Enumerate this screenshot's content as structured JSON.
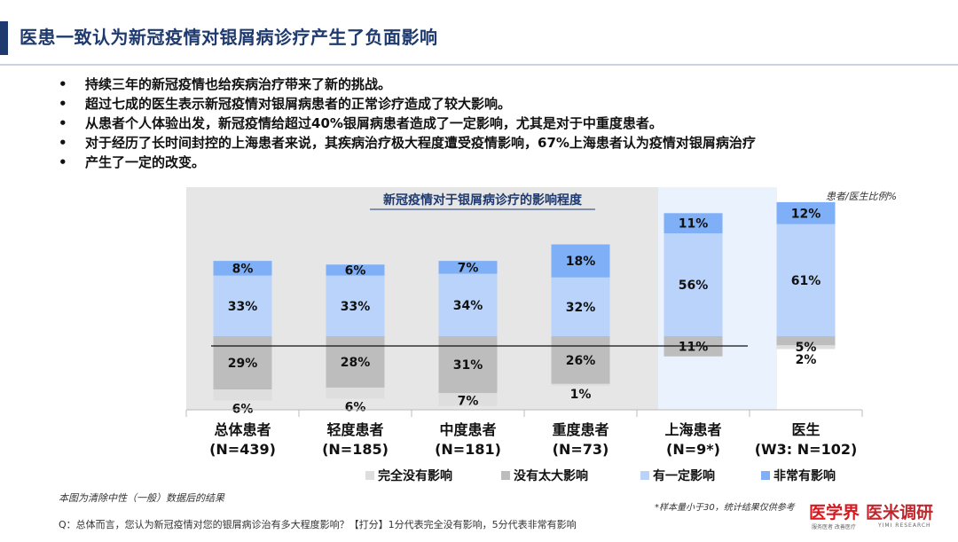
{
  "title": "医患一致认为新冠疫情对银屑病诊疗产生了负面影响",
  "bullets": [
    "持续三年的新冠疫情也给疾病治疗带来了新的挑战。",
    "超过七成的医生表示新冠疫情对银屑病患者的正常诊疗造成了较大影响。",
    "从患者个人体验出发，新冠疫情给超过40%银屑病患者造成了一定影响，尤其是对于中重度患者。",
    "对于经历了长时间封控的上海患者来说，其疾病治疗极大程度遭受疫情影响，67%上海患者认为疫情对银屑病治疗",
    "产生了一定的改变。"
  ],
  "chart_data": {
    "type": "bar",
    "title": "新冠疫情对于银屑病诊疗的影响程度",
    "unit_note": "患者/医生比例%",
    "categories": [
      [
        "总体患者",
        "(N=439)"
      ],
      [
        "轻度患者",
        "(N=185)"
      ],
      [
        "中度患者",
        "(N=181)"
      ],
      [
        "重度患者",
        "(N=73)"
      ],
      [
        "上海患者",
        "(N=9*)"
      ],
      [
        "医生",
        "(W3: N=102)"
      ]
    ],
    "series": [
      {
        "name": "完全没有影响",
        "color": "#dedede",
        "values": [
          6,
          6,
          7,
          1,
          0,
          2
        ],
        "labels": [
          "6%",
          "6%",
          "7%",
          "1%",
          "",
          "2%"
        ]
      },
      {
        "name": "没有太大影响",
        "color": "#bdbdbd",
        "values": [
          29,
          28,
          31,
          26,
          11,
          5
        ],
        "labels": [
          "29%",
          "28%",
          "31%",
          "26%",
          "11%",
          "5%"
        ]
      },
      {
        "name": "有一定影响",
        "color": "#b9d3fb",
        "values": [
          33,
          33,
          34,
          32,
          56,
          61
        ],
        "labels": [
          "33%",
          "33%",
          "34%",
          "32%",
          "56%",
          "61%"
        ]
      },
      {
        "name": "非常有影响",
        "color": "#7fb0f7",
        "values": [
          8,
          6,
          7,
          18,
          11,
          12
        ],
        "labels": [
          "8%",
          "6%",
          "7%",
          "18%",
          "11%",
          "12%"
        ]
      }
    ],
    "legend_position": "bottom",
    "baseline": "diverging around neutral line"
  },
  "footnote_left": "本图为清除中性（一般）数据后的结果",
  "footnote_right": "*样本量小于30，统计结果仅供参考",
  "question": "Q：总体而言，您认为新冠疫情对您的银屑病诊治有多大程度影响？【打分】1分代表完全没有影响，5分代表非常有影响",
  "logos": {
    "logo1": "医学界",
    "logo1_sub": "服务医者 改善医疗",
    "logo2": "医米调研",
    "logo2_sub": "YIMI RESEARCH"
  }
}
